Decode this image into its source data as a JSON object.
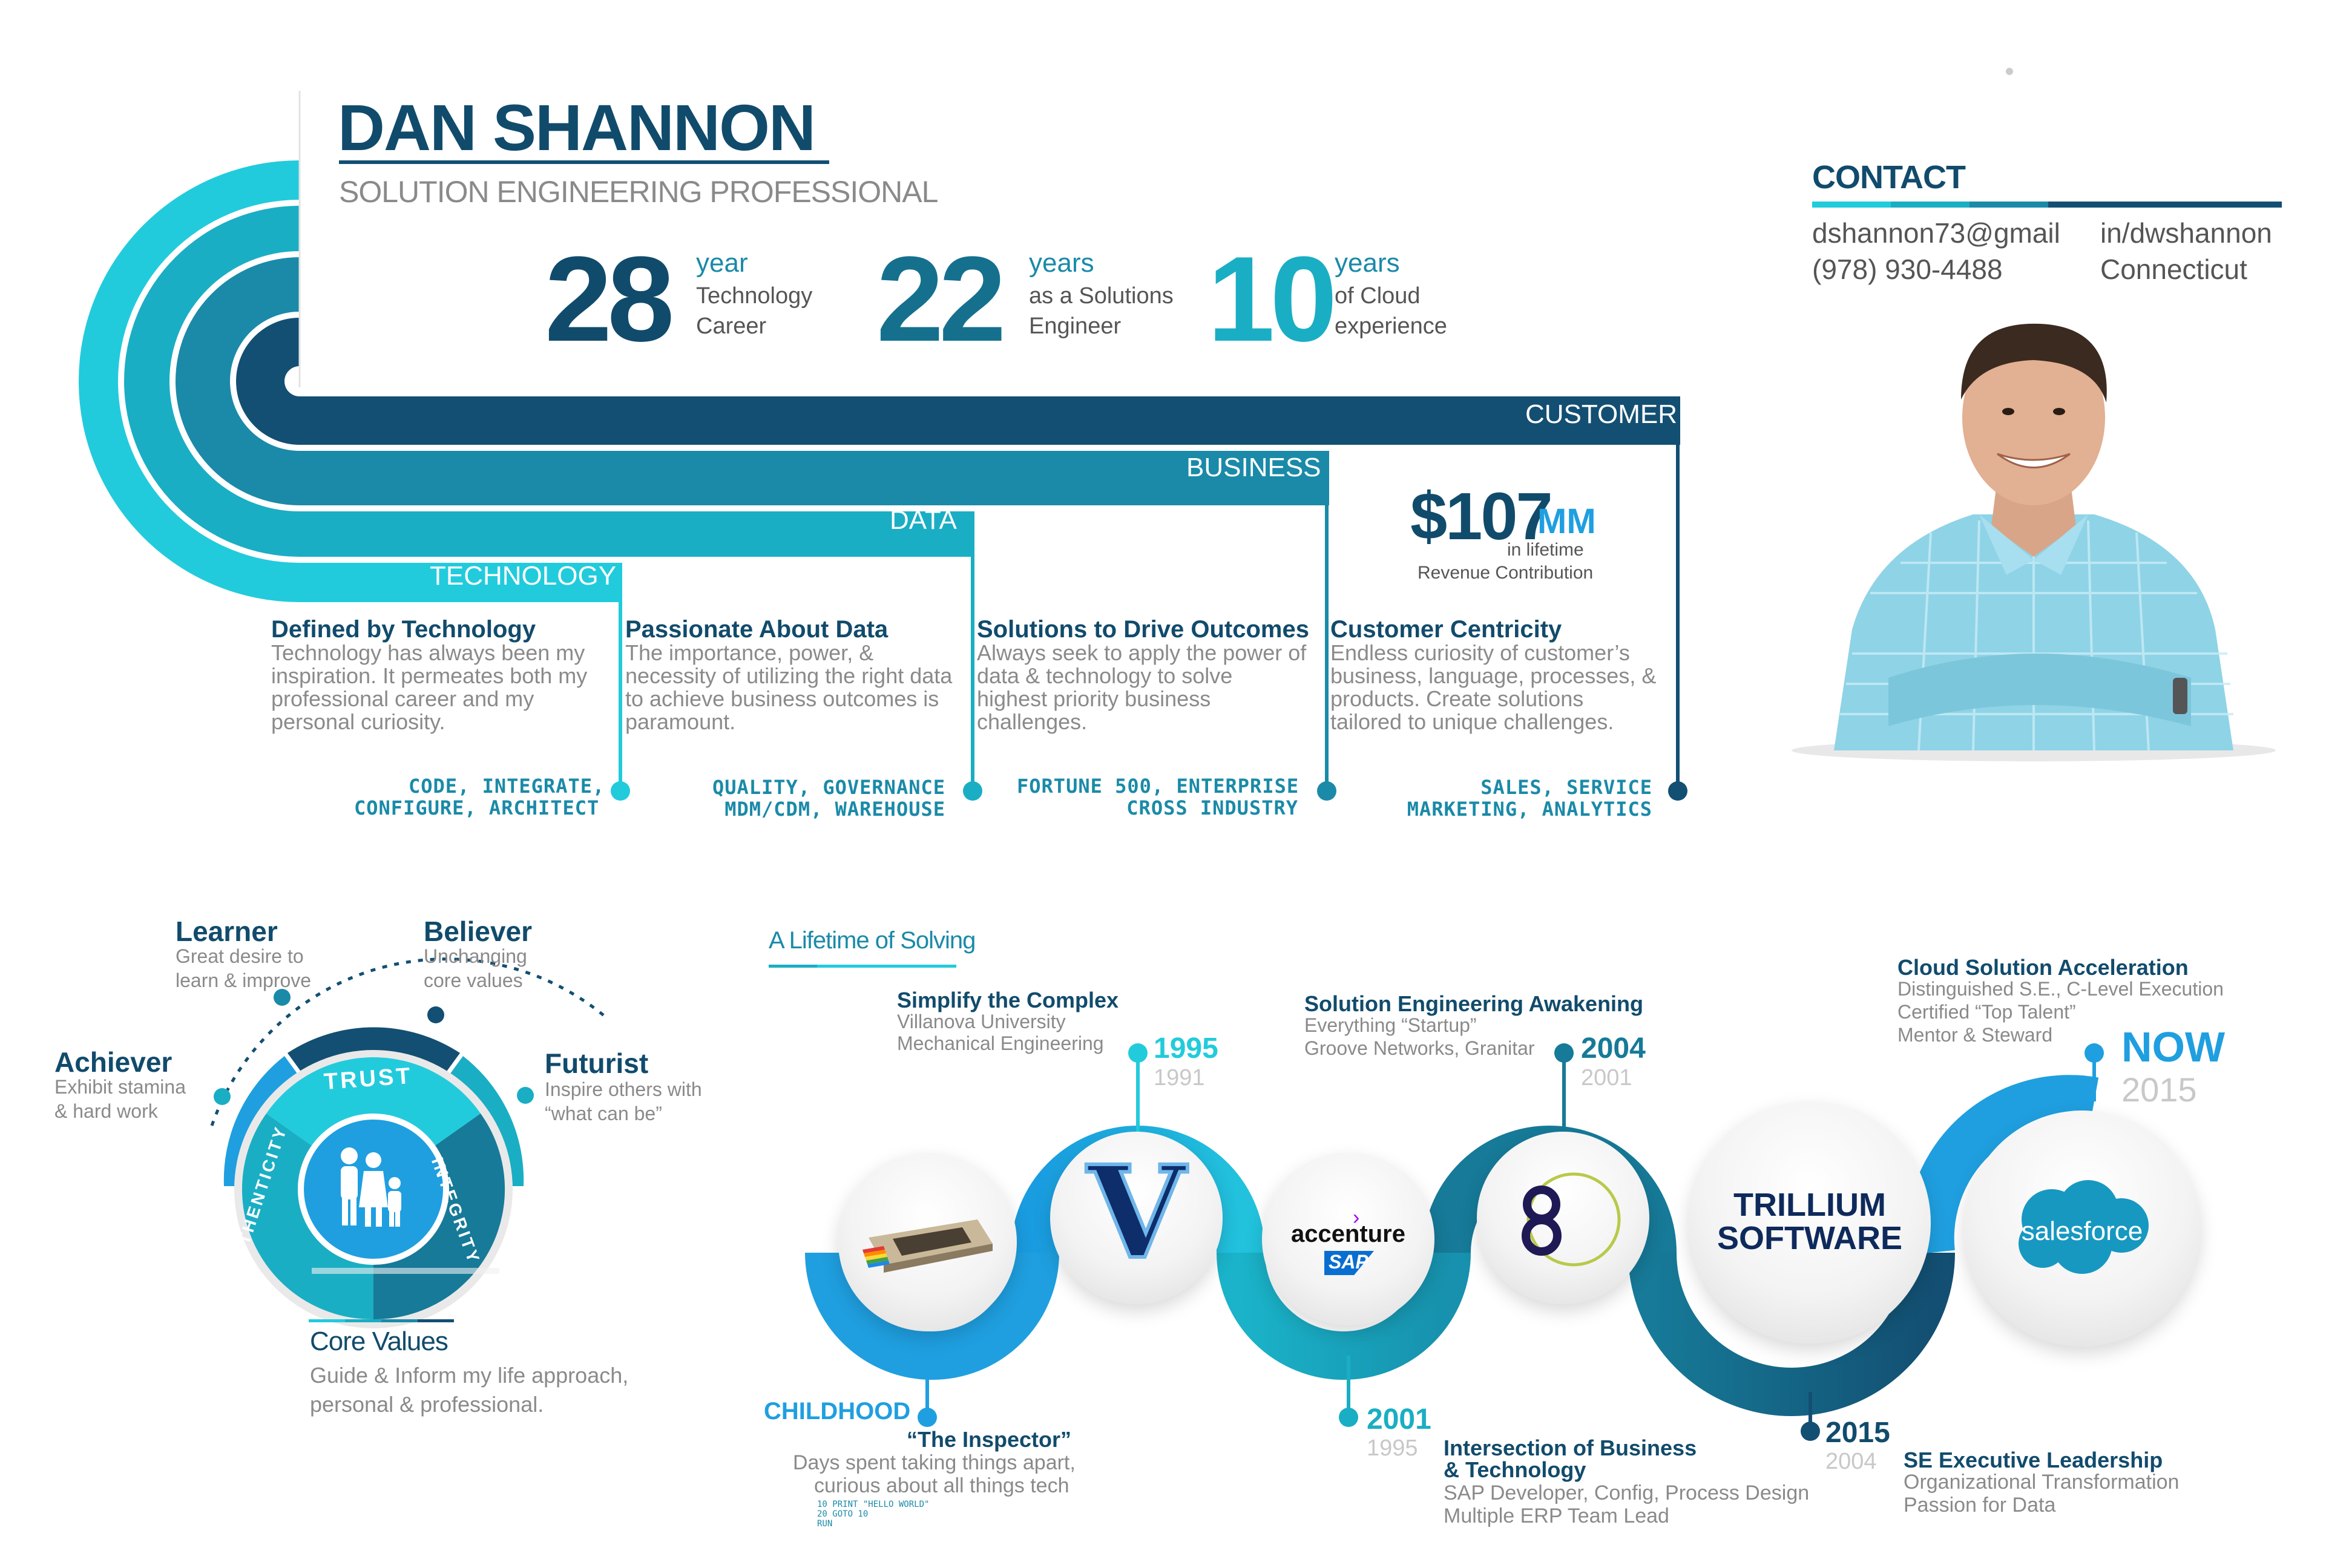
{
  "header": {
    "name": "DAN SHANNON",
    "subtitle": "SOLUTION ENGINEERING PROFESSIONAL"
  },
  "stats": [
    {
      "number": "28",
      "unit": "year",
      "line1": "Technology",
      "line2": "Career"
    },
    {
      "number": "22",
      "unit": "years",
      "line1": "as a Solutions",
      "line2": "Engineer"
    },
    {
      "number": "10",
      "unit": "years",
      "line1": "of Cloud",
      "line2": "experience"
    }
  ],
  "contact": {
    "heading": "CONTACT",
    "email": "dshannon73@gmail",
    "phone": "(978) 930-4488",
    "linkedin": "in/dwshannon",
    "location": "Connecticut"
  },
  "revenue": {
    "amount": "$107",
    "unit": "MM",
    "line1": "in lifetime",
    "line2": "Revenue Contribution"
  },
  "bands": {
    "technology": "TECHNOLOGY",
    "data": "DATA",
    "business": "BUSINESS",
    "customer": "CUSTOMER"
  },
  "pillars": [
    {
      "title": "Defined by Technology",
      "lines": [
        "Technology has always been my",
        "inspiration.  It permeates both my",
        "professional career and my",
        "personal curiosity."
      ],
      "tags": [
        "CODE, INTEGRATE,",
        "CONFIGURE, ARCHITECT"
      ]
    },
    {
      "title": "Passionate About Data",
      "lines": [
        "The importance, power, &",
        "necessity of utilizing the right data",
        "to achieve business outcomes is",
        "paramount."
      ],
      "tags": [
        "QUALITY, GOVERNANCE",
        "MDM/CDM, WAREHOUSE"
      ]
    },
    {
      "title": "Solutions to Drive Outcomes",
      "lines": [
        "Always seek to apply the power of",
        "data & technology to solve",
        "highest priority business",
        "challenges."
      ],
      "tags": [
        "FORTUNE 500, ENTERPRISE",
        "CROSS INDUSTRY"
      ]
    },
    {
      "title": "Customer Centricity",
      "lines": [
        "Endless curiosity of customer’s",
        "business, language, processes, &",
        "products.  Create solutions",
        "tailored to unique challenges."
      ],
      "tags": [
        "SALES, SERVICE",
        "MARKETING, ANALYTICS"
      ]
    }
  ],
  "core_values": {
    "traits": [
      {
        "title": "Learner",
        "lines": [
          "Great desire to",
          "learn & improve"
        ]
      },
      {
        "title": "Believer",
        "lines": [
          "Unchanging",
          "core values"
        ]
      },
      {
        "title": "Achiever",
        "lines": [
          "Exhibit stamina",
          "& hard work"
        ]
      },
      {
        "title": "Futurist",
        "lines": [
          "Inspire others with",
          "“what can be”"
        ]
      }
    ],
    "wheel": {
      "top": "TRUST",
      "left": "AUTHENTICITY",
      "right": "INTEGRITY"
    },
    "title": "Core Values",
    "lines": [
      "Guide & Inform my life approach,",
      "personal & professional."
    ]
  },
  "timeline": {
    "heading": "A Lifetime of Solving",
    "logos": {
      "villanova": "V",
      "accenture": "accenture",
      "sap": "SAP",
      "trillium1": "TRILLIUM",
      "trillium2": "SOFTWARE",
      "salesforce": "salesforce"
    },
    "events": [
      {
        "label": "CHILDHOOD",
        "title": "“The Inspector”",
        "lines": [
          "Days spent taking things apart,",
          "curious about all things tech"
        ],
        "code": [
          "10 PRINT \"HELLO WORLD\"",
          "20 GOTO 10",
          "RUN"
        ]
      },
      {
        "year": "1995",
        "sub": "1991",
        "title": "Simplify the Complex",
        "lines": [
          "Villanova University",
          "Mechanical Engineering"
        ]
      },
      {
        "year": "2001",
        "sub": "1995",
        "title": "Intersection of Business",
        "title2": "& Technology",
        "lines": [
          "SAP Developer, Config, Process Design",
          "Multiple ERP Team Lead"
        ]
      },
      {
        "year": "2004",
        "sub": "2001",
        "title": "Solution Engineering Awakening",
        "lines": [
          "Everything “Startup”",
          "Groove Networks, Granitar"
        ]
      },
      {
        "year": "2015",
        "sub": "2004",
        "title": "SE Executive Leadership",
        "lines": [
          "Organizational Transformation",
          "Passion for Data"
        ]
      },
      {
        "year": "NOW",
        "sub": "2015",
        "title": "Cloud Solution Acceleration",
        "lines": [
          "Distinguished S.E., C-Level Execution",
          "Certified “Top Talent”",
          "Mentor & Steward"
        ]
      }
    ]
  },
  "colors": {
    "navy": "#114b6c",
    "dark_teal": "#15657f",
    "teal": "#1a8aa8",
    "mid": "#1aaec4",
    "light": "#22cbdc",
    "sky": "#1f9fe0"
  }
}
